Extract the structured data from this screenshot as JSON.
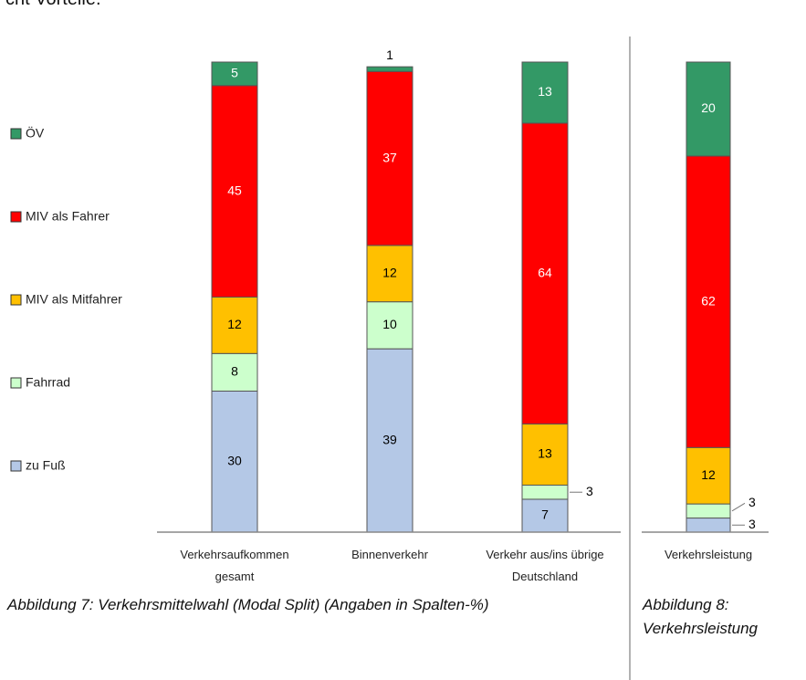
{
  "page_text": "cht Vorteile.",
  "chart_data": [
    {
      "type": "stacked_bar",
      "caption": "Abbildung 7: Verkehrsmittelwahl (Modal Split) (Angaben in Spalten-%)",
      "categories": [
        "Verkehrsaufkommen gesamt",
        "Binnenverkehr",
        "Verkehr aus/ins übrige Deutschland"
      ],
      "ylim": [
        0,
        100
      ],
      "series": [
        {
          "name": "zu Fuß",
          "color": "#b4c8e6",
          "label_color": "#000000",
          "values": [
            30,
            39,
            7
          ]
        },
        {
          "name": "Fahrrad",
          "color": "#ccffcc",
          "label_color": "#000000",
          "values": [
            8,
            10,
            3
          ]
        },
        {
          "name": "MIV als Mitfahrer",
          "color": "#ffc000",
          "label_color": "#000000",
          "values": [
            12,
            12,
            13
          ]
        },
        {
          "name": "MIV als Fahrer",
          "color": "#ff0000",
          "label_color": "#ffffff",
          "values": [
            45,
            37,
            64
          ]
        },
        {
          "name": "ÖV",
          "color": "#339966",
          "label_color": "#ffffff",
          "values": [
            5,
            1,
            13
          ]
        }
      ]
    },
    {
      "type": "stacked_bar",
      "caption": "Abbildung 8: Verkehrsleistung",
      "categories": [
        "Verkehrsleistung"
      ],
      "ylim": [
        0,
        100
      ],
      "series": [
        {
          "color": "#b4c8e6",
          "label_color": "#000000",
          "values": [
            3
          ]
        },
        {
          "color": "#ccffcc",
          "label_color": "#000000",
          "values": [
            3
          ]
        },
        {
          "color": "#ffc000",
          "label_color": "#000000",
          "values": [
            12
          ]
        },
        {
          "color": "#ff0000",
          "label_color": "#ffffff",
          "values": [
            62
          ]
        },
        {
          "color": "#339966",
          "label_color": "#ffffff",
          "values": [
            20
          ]
        }
      ]
    }
  ]
}
